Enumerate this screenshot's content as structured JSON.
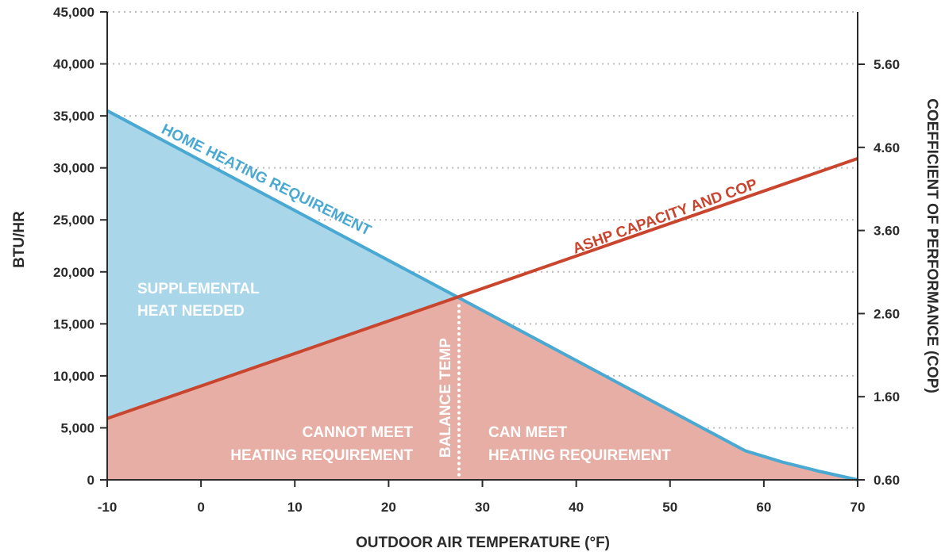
{
  "chart_data": {
    "type": "area",
    "xlabel": "OUTDOOR AIR TEMPERATURE (°F)",
    "ylabel": "BTU/HR",
    "y2label": "COEFFICIENT OF PERFORMANCE (COP)",
    "xlim": [
      -10,
      70
    ],
    "ylim": [
      0,
      45000
    ],
    "y2lim": [
      0.6,
      5.6
    ],
    "x_ticks": [
      -10,
      0,
      10,
      20,
      30,
      40,
      50,
      60,
      70
    ],
    "x_tick_labels": [
      "-10",
      "0",
      "10",
      "20",
      "30",
      "40",
      "50",
      "60",
      "70"
    ],
    "y_ticks": [
      0,
      5000,
      10000,
      15000,
      20000,
      25000,
      30000,
      35000,
      40000,
      45000
    ],
    "y_tick_labels": [
      "0",
      "5,000",
      "10,000",
      "15,000",
      "20,000",
      "25,000",
      "30,000",
      "35,000",
      "40,000",
      "45,000"
    ],
    "y2_ticks": [
      0.6,
      1.6,
      2.6,
      3.6,
      4.6,
      5.6
    ],
    "y2_tick_labels": [
      "0.60",
      "1.60",
      "2.60",
      "3.60",
      "4.60",
      "5.60"
    ],
    "grid": "horizontal-dotted",
    "series": [
      {
        "name": "HOME HEATING REQUIREMENT",
        "color": "#4aa9d3",
        "x": [
          -10,
          27.5,
          58,
          62,
          66,
          70
        ],
        "y": [
          35500,
          17500,
          2800,
          1700,
          800,
          0
        ]
      },
      {
        "name": "ASHP CAPACITY AND COP",
        "color": "#c9452d",
        "x": [
          -10,
          70
        ],
        "y": [
          5900,
          30900
        ]
      }
    ],
    "balance_temp": {
      "x": 27.5,
      "y": 17500,
      "label": "BALANCE TEMP"
    },
    "annotations": {
      "supplemental": [
        "SUPPLEMENTAL",
        "HEAT NEEDED"
      ],
      "cannot_meet": [
        "CANNOT MEET",
        "HEATING REQUIREMENT"
      ],
      "can_meet": [
        "CAN MEET",
        "HEATING REQUIREMENT"
      ]
    },
    "fill_colors": {
      "blue": "#a9d6e8",
      "red": "#e6aea4"
    },
    "grid_color": "#bdbdbd",
    "axis_color": "#2b2b2b"
  }
}
